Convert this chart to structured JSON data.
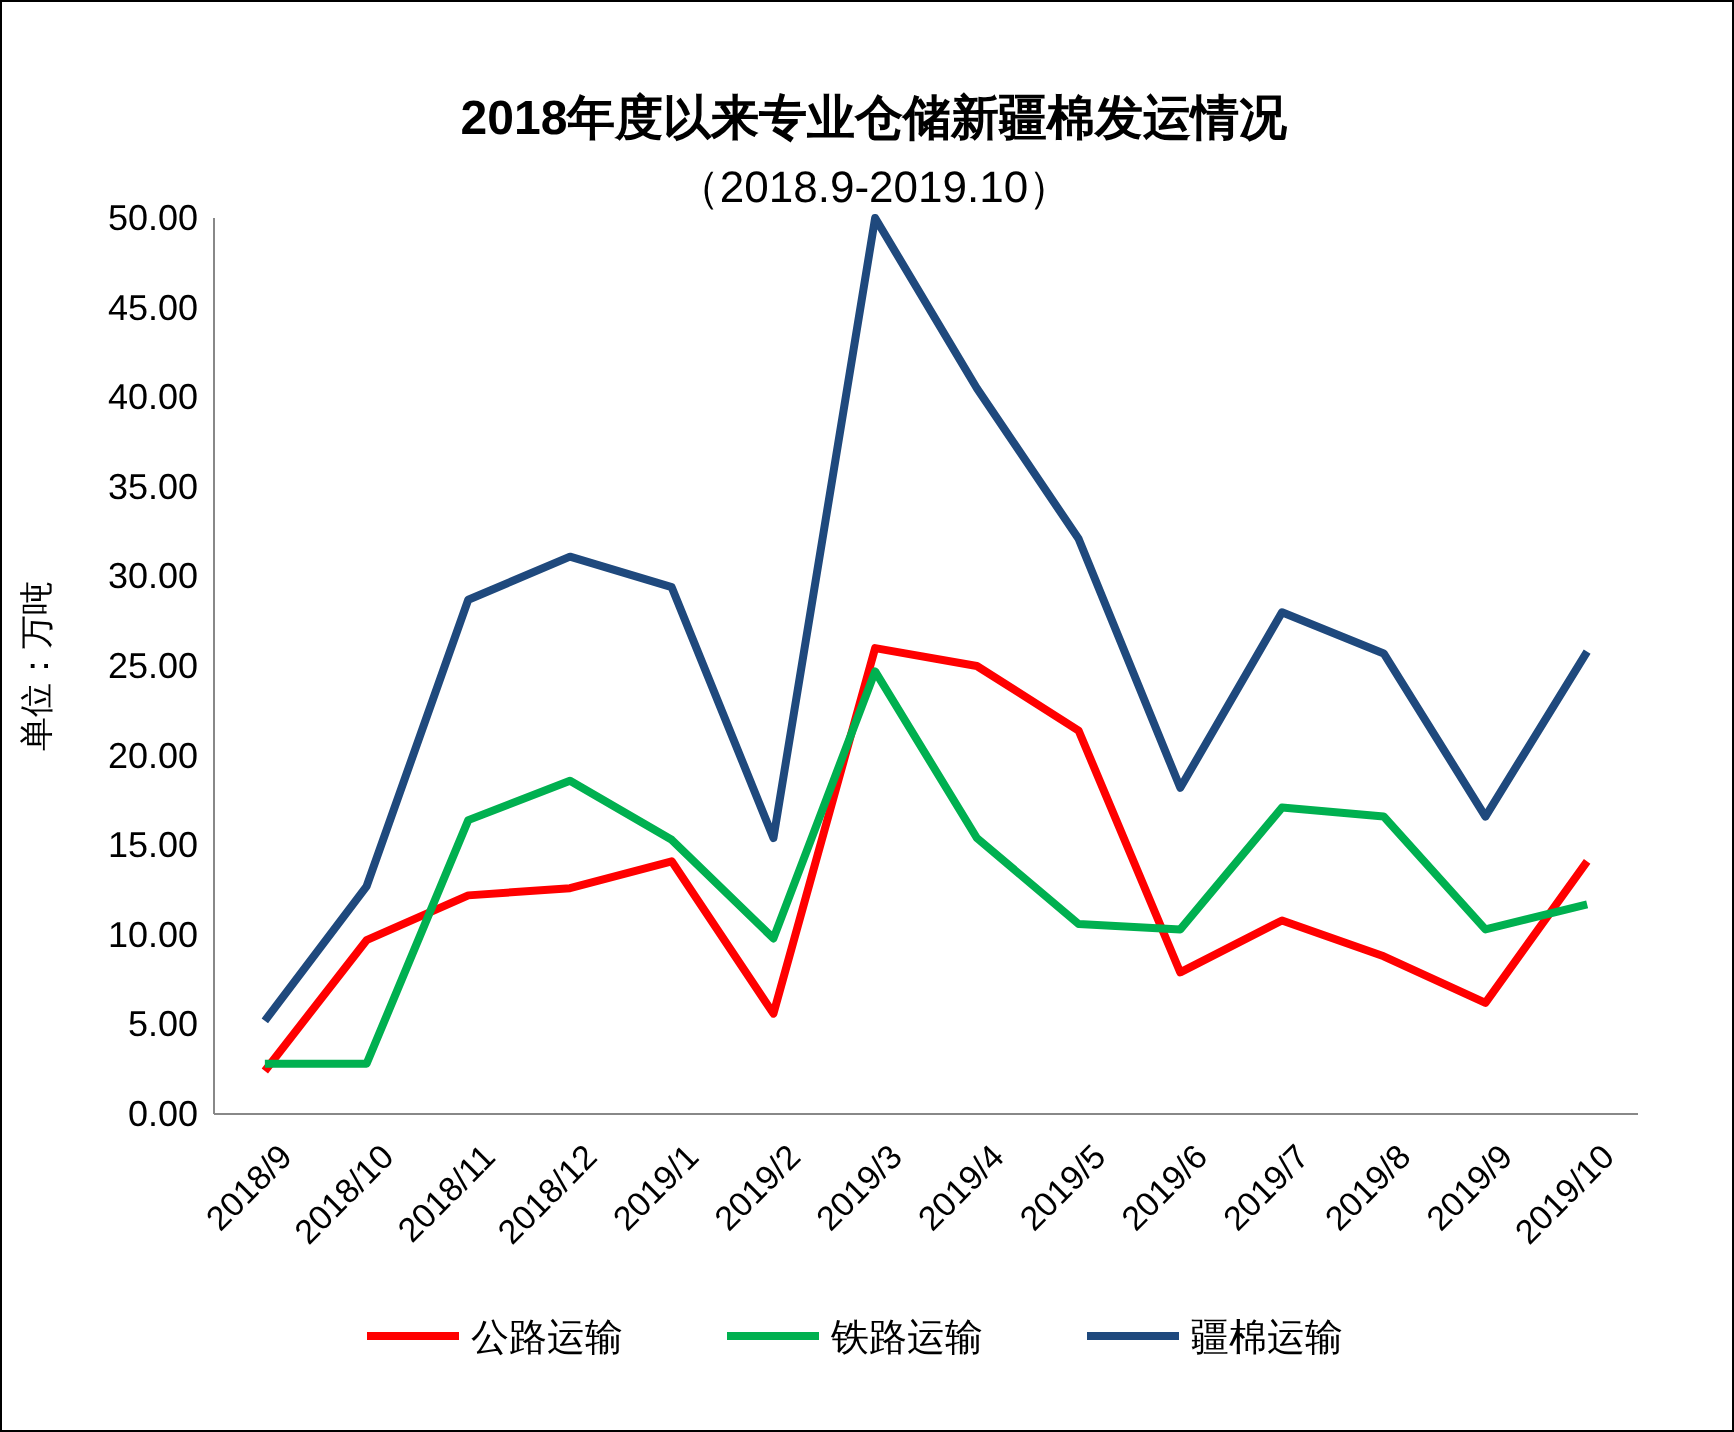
{
  "chart_data": {
    "type": "line",
    "title": "2018年度以来专业仓储新疆棉发运情况",
    "subtitle": "（2018.9-2019.10）",
    "ylabel": "单位：万吨",
    "categories": [
      "2018/9",
      "2018/10",
      "2018/11",
      "2018/12",
      "2019/1",
      "2019/2",
      "2019/3",
      "2019/4",
      "2019/5",
      "2019/6",
      "2019/7",
      "2019/8",
      "2019/9",
      "2019/10"
    ],
    "series": [
      {
        "name": "公路运输",
        "color": "#ff0000",
        "values": [
          2.4,
          9.7,
          12.2,
          12.6,
          14.1,
          5.6,
          26.0,
          25.0,
          21.4,
          7.9,
          10.8,
          8.8,
          6.2,
          14.1
        ]
      },
      {
        "name": "铁路运输",
        "color": "#00b050",
        "values": [
          2.8,
          2.8,
          16.4,
          18.6,
          15.3,
          9.8,
          24.7,
          15.4,
          10.6,
          10.3,
          17.1,
          16.6,
          10.3,
          11.7
        ]
      },
      {
        "name": "疆棉运输",
        "color": "#1f497d",
        "values": [
          5.2,
          12.7,
          28.7,
          31.1,
          29.4,
          15.4,
          50.0,
          40.5,
          32.1,
          18.2,
          28.0,
          25.7,
          16.6,
          25.8
        ]
      }
    ],
    "ylim": [
      0,
      50
    ],
    "yticks": [
      {
        "value": 0,
        "label": "0.00"
      },
      {
        "value": 5,
        "label": "5.00"
      },
      {
        "value": 10,
        "label": "10.00"
      },
      {
        "value": 15,
        "label": "15.00"
      },
      {
        "value": 20,
        "label": "20.00"
      },
      {
        "value": 25,
        "label": "25.00"
      },
      {
        "value": 30,
        "label": "30.00"
      },
      {
        "value": 35,
        "label": "35.00"
      },
      {
        "value": 40,
        "label": "40.00"
      },
      {
        "value": 45,
        "label": "45.00"
      },
      {
        "value": 50,
        "label": "50.00"
      }
    ],
    "legend": "bottom",
    "marker": "none",
    "line_style": "solid"
  }
}
